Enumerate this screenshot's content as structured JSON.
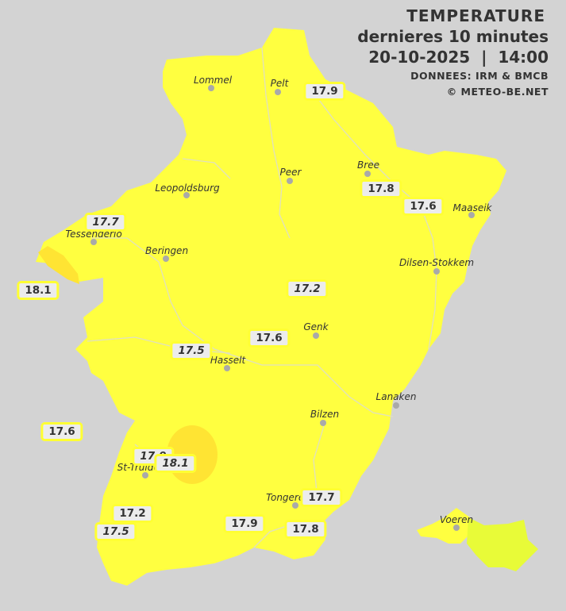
{
  "header": {
    "title": "TEMPERATURE",
    "subtitle": "dernieres 10 minutes",
    "datetime": "20-10-2025  |  14:00",
    "source": "DONNEES: IRM & BMCB",
    "copyright": "© METEO-BE.NET"
  },
  "colors": {
    "background": "#d3d3d3",
    "province": "#ffff40",
    "warm": "#ffe433",
    "voeren": "#e8fb38"
  },
  "cities": [
    {
      "name": "Lommel"
    },
    {
      "name": "Pelt"
    },
    {
      "name": "Peer"
    },
    {
      "name": "Bree"
    },
    {
      "name": "Leopoldsburg"
    },
    {
      "name": "Maaseik"
    },
    {
      "name": "Tessenderlo"
    },
    {
      "name": "Beringen"
    },
    {
      "name": "Dilsen-Stokkem"
    },
    {
      "name": "Genk"
    },
    {
      "name": "Hasselt"
    },
    {
      "name": "Lanaken"
    },
    {
      "name": "Bilzen"
    },
    {
      "name": "St-Truiden"
    },
    {
      "name": "Tongeren"
    },
    {
      "name": "Voeren"
    }
  ],
  "readings": [
    {
      "value": "17.9"
    },
    {
      "value": "17.8"
    },
    {
      "value": "17.6"
    },
    {
      "value": "17.7"
    },
    {
      "value": "18.1"
    },
    {
      "value": "17.2"
    },
    {
      "value": "17.6"
    },
    {
      "value": "17.5"
    },
    {
      "value": "17.6"
    },
    {
      "value": "17.9"
    },
    {
      "value": "18.1"
    },
    {
      "value": "17.7"
    },
    {
      "value": "17.2"
    },
    {
      "value": "17.5"
    },
    {
      "value": "17.9"
    },
    {
      "value": "17.8"
    }
  ]
}
